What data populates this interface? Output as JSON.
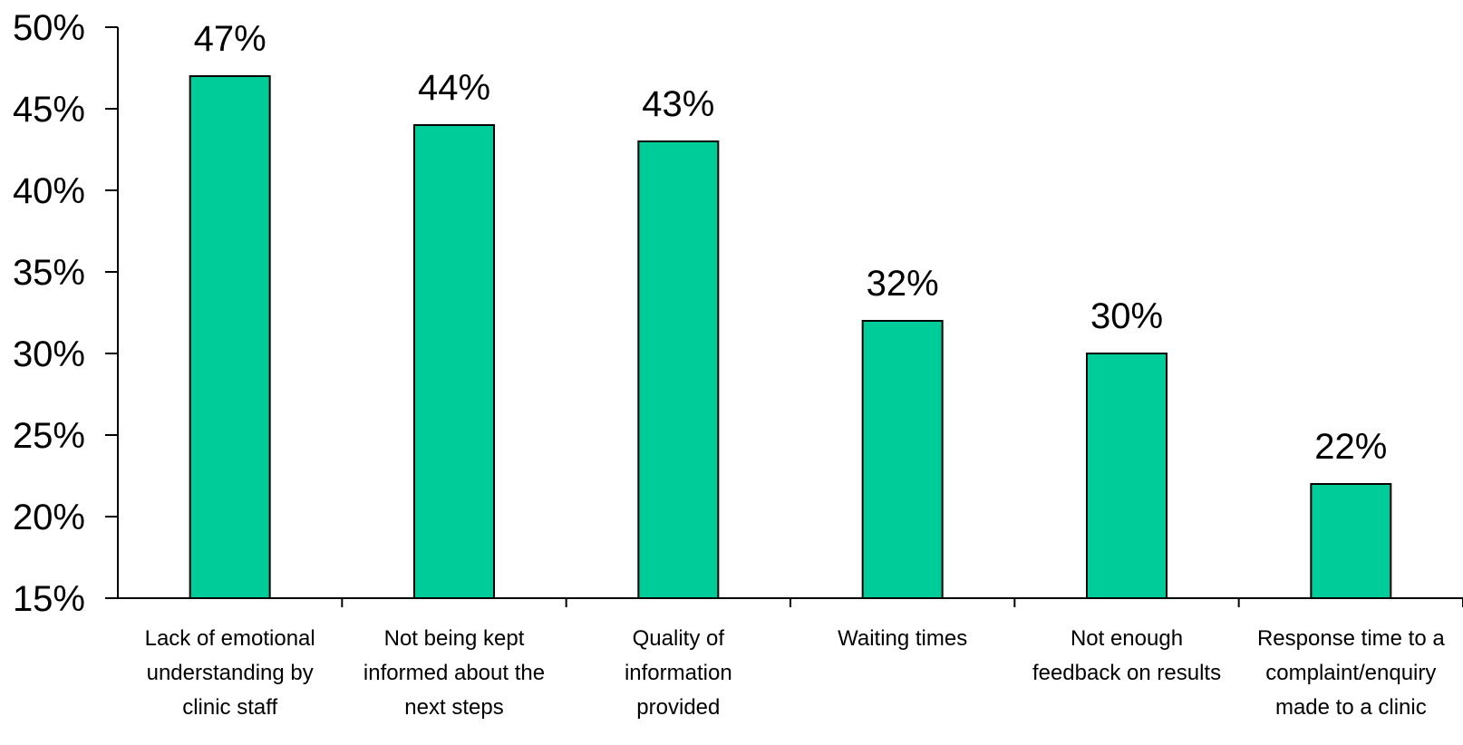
{
  "chart_data": {
    "type": "bar",
    "categories": [
      "Lack of emotional understanding by clinic staff",
      "Not being kept informed about the next steps",
      "Quality of information provided",
      "Waiting times",
      "Not enough feedback on results",
      "Response time to a complaint/enquiry made to a clinic"
    ],
    "category_lines": [
      [
        "Lack of emotional",
        "understanding by",
        "clinic staff"
      ],
      [
        "Not being kept",
        "informed about the",
        "next steps"
      ],
      [
        "Quality of",
        "information",
        "provided"
      ],
      [
        "Waiting times"
      ],
      [
        "Not enough",
        "feedback on results"
      ],
      [
        "Response time to a",
        "complaint/enquiry",
        "made to a clinic"
      ]
    ],
    "values": [
      47,
      44,
      43,
      32,
      30,
      22
    ],
    "data_labels": [
      "47%",
      "44%",
      "43%",
      "32%",
      "30%",
      "22%"
    ],
    "ylim": [
      15,
      50
    ],
    "yticks": [
      15,
      20,
      25,
      30,
      35,
      40,
      45,
      50
    ],
    "ytick_labels": [
      "15%",
      "20%",
      "25%",
      "30%",
      "35%",
      "40%",
      "45%",
      "50%"
    ],
    "title": "",
    "xlabel": "",
    "ylabel": "",
    "grid": false,
    "bar_color": "#00CC99"
  }
}
